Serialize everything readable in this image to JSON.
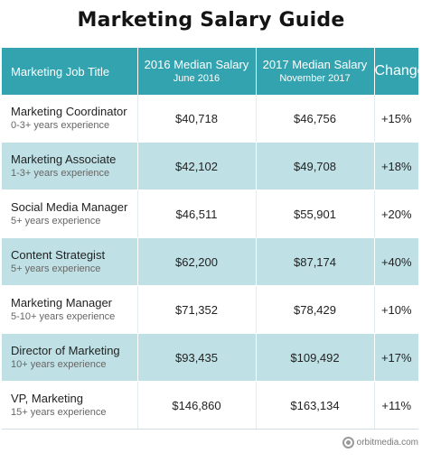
{
  "title": "Marketing Salary Guide",
  "header": {
    "col1": "Marketing Job Title",
    "col2_main": "2016 Median Salary",
    "col2_sub": "June 2016",
    "col3_main": "2017 Median Salary",
    "col3_sub": "November 2017",
    "col4": "Change"
  },
  "rows": [
    {
      "title": "Marketing Coordinator",
      "experience": "0-3+ years experience",
      "s2016": "$40,718",
      "s2017": "$46,756",
      "change": "+15%"
    },
    {
      "title": "Marketing Associate",
      "experience": "1-3+ years experience",
      "s2016": "$42,102",
      "s2017": "$49,708",
      "change": "+18%"
    },
    {
      "title": "Social Media Manager",
      "experience": "5+ years experience",
      "s2016": "$46,511",
      "s2017": "$55,901",
      "change": "+20%"
    },
    {
      "title": "Content Strategist",
      "experience": "5+ years experience",
      "s2016": "$62,200",
      "s2017": "$87,174",
      "change": "+40%"
    },
    {
      "title": "Marketing Manager",
      "experience": "5-10+ years experience",
      "s2016": "$71,352",
      "s2017": "$78,429",
      "change": "+10%"
    },
    {
      "title": "Director of Marketing",
      "experience": "10+ years experience",
      "s2016": "$93,435",
      "s2017": "$109,492",
      "change": "+17%"
    },
    {
      "title": "VP, Marketing",
      "experience": "15+ years experience",
      "s2016": "$146,860",
      "s2017": "$163,134",
      "change": "+11%"
    }
  ],
  "footer": {
    "brand": "orbitmedia.com",
    "logo_icon": "orbit-logo-icon"
  },
  "colors": {
    "header_bg": "#33a3b0",
    "stripe_bg": "#bfe1e6"
  }
}
